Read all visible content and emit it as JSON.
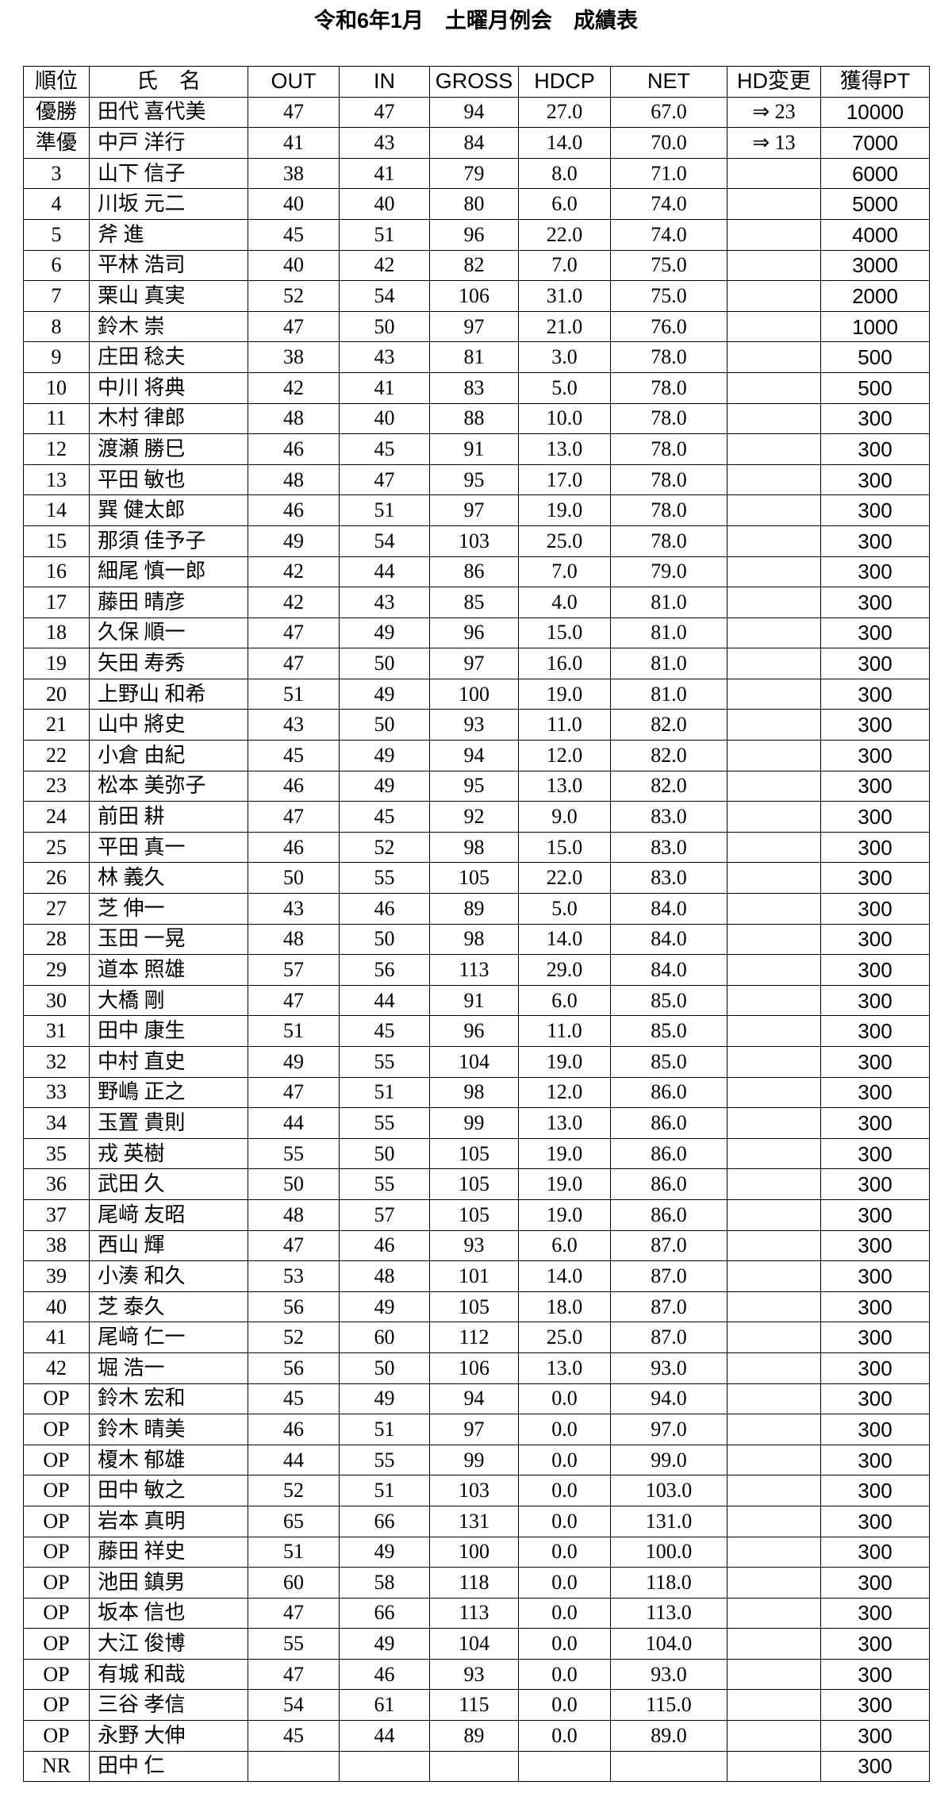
{
  "header": {
    "title": "令和6年1月　土曜月例会　成績表"
  },
  "table": {
    "columns": [
      "順位",
      "氏　名",
      "OUT",
      "IN",
      "GROSS",
      "HDCP",
      "NET",
      "HD変更",
      "獲得PT"
    ],
    "rows": [
      [
        "優勝",
        "田代 喜代美",
        "47",
        "47",
        "94",
        "27.0",
        "67.0",
        "⇒ 23",
        "10000"
      ],
      [
        "準優",
        "中戸 洋行",
        "41",
        "43",
        "84",
        "14.0",
        "70.0",
        "⇒ 13",
        "7000"
      ],
      [
        "3",
        "山下 信子",
        "38",
        "41",
        "79",
        "8.0",
        "71.0",
        null,
        "6000"
      ],
      [
        "4",
        "川坂 元二",
        "40",
        "40",
        "80",
        "6.0",
        "74.0",
        null,
        "5000"
      ],
      [
        "5",
        "斧 進",
        "45",
        "51",
        "96",
        "22.0",
        "74.0",
        null,
        "4000"
      ],
      [
        "6",
        "平林 浩司",
        "40",
        "42",
        "82",
        "7.0",
        "75.0",
        null,
        "3000"
      ],
      [
        "7",
        "栗山 真実",
        "52",
        "54",
        "106",
        "31.0",
        "75.0",
        null,
        "2000"
      ],
      [
        "8",
        "鈴木 崇",
        "47",
        "50",
        "97",
        "21.0",
        "76.0",
        null,
        "1000"
      ],
      [
        "9",
        "庄田 稔夫",
        "38",
        "43",
        "81",
        "3.0",
        "78.0",
        null,
        "500"
      ],
      [
        "10",
        "中川 将典",
        "42",
        "41",
        "83",
        "5.0",
        "78.0",
        null,
        "500"
      ],
      [
        "11",
        "木村 律郎",
        "48",
        "40",
        "88",
        "10.0",
        "78.0",
        null,
        "300"
      ],
      [
        "12",
        "渡瀬 勝巳",
        "46",
        "45",
        "91",
        "13.0",
        "78.0",
        null,
        "300"
      ],
      [
        "13",
        "平田 敏也",
        "48",
        "47",
        "95",
        "17.0",
        "78.0",
        null,
        "300"
      ],
      [
        "14",
        "巽 健太郎",
        "46",
        "51",
        "97",
        "19.0",
        "78.0",
        null,
        "300"
      ],
      [
        "15",
        "那須 佳予子",
        "49",
        "54",
        "103",
        "25.0",
        "78.0",
        null,
        "300"
      ],
      [
        "16",
        "細尾 慎一郎",
        "42",
        "44",
        "86",
        "7.0",
        "79.0",
        null,
        "300"
      ],
      [
        "17",
        "藤田 晴彦",
        "42",
        "43",
        "85",
        "4.0",
        "81.0",
        null,
        "300"
      ],
      [
        "18",
        "久保 順一",
        "47",
        "49",
        "96",
        "15.0",
        "81.0",
        null,
        "300"
      ],
      [
        "19",
        "矢田 寿秀",
        "47",
        "50",
        "97",
        "16.0",
        "81.0",
        null,
        "300"
      ],
      [
        "20",
        "上野山 和希",
        "51",
        "49",
        "100",
        "19.0",
        "81.0",
        null,
        "300"
      ],
      [
        "21",
        "山中 將史",
        "43",
        "50",
        "93",
        "11.0",
        "82.0",
        null,
        "300"
      ],
      [
        "22",
        "小倉 由紀",
        "45",
        "49",
        "94",
        "12.0",
        "82.0",
        null,
        "300"
      ],
      [
        "23",
        "松本 美弥子",
        "46",
        "49",
        "95",
        "13.0",
        "82.0",
        null,
        "300"
      ],
      [
        "24",
        "前田 耕",
        "47",
        "45",
        "92",
        "9.0",
        "83.0",
        null,
        "300"
      ],
      [
        "25",
        "平田 真一",
        "46",
        "52",
        "98",
        "15.0",
        "83.0",
        null,
        "300"
      ],
      [
        "26",
        "林 義久",
        "50",
        "55",
        "105",
        "22.0",
        "83.0",
        null,
        "300"
      ],
      [
        "27",
        "芝 伸一",
        "43",
        "46",
        "89",
        "5.0",
        "84.0",
        null,
        "300"
      ],
      [
        "28",
        "玉田 一晃",
        "48",
        "50",
        "98",
        "14.0",
        "84.0",
        null,
        "300"
      ],
      [
        "29",
        "道本 照雄",
        "57",
        "56",
        "113",
        "29.0",
        "84.0",
        null,
        "300"
      ],
      [
        "30",
        "大橋 剛",
        "47",
        "44",
        "91",
        "6.0",
        "85.0",
        null,
        "300"
      ],
      [
        "31",
        "田中 康生",
        "51",
        "45",
        "96",
        "11.0",
        "85.0",
        null,
        "300"
      ],
      [
        "32",
        "中村 直史",
        "49",
        "55",
        "104",
        "19.0",
        "85.0",
        null,
        "300"
      ],
      [
        "33",
        "野嶋 正之",
        "47",
        "51",
        "98",
        "12.0",
        "86.0",
        null,
        "300"
      ],
      [
        "34",
        "玉置 貴則",
        "44",
        "55",
        "99",
        "13.0",
        "86.0",
        null,
        "300"
      ],
      [
        "35",
        "戎 英樹",
        "55",
        "50",
        "105",
        "19.0",
        "86.0",
        null,
        "300"
      ],
      [
        "36",
        "武田 久",
        "50",
        "55",
        "105",
        "19.0",
        "86.0",
        null,
        "300"
      ],
      [
        "37",
        "尾﨑 友昭",
        "48",
        "57",
        "105",
        "19.0",
        "86.0",
        null,
        "300"
      ],
      [
        "38",
        "西山 輝",
        "47",
        "46",
        "93",
        "6.0",
        "87.0",
        null,
        "300"
      ],
      [
        "39",
        "小湊 和久",
        "53",
        "48",
        "101",
        "14.0",
        "87.0",
        null,
        "300"
      ],
      [
        "40",
        "芝 泰久",
        "56",
        "49",
        "105",
        "18.0",
        "87.0",
        null,
        "300"
      ],
      [
        "41",
        "尾﨑 仁一",
        "52",
        "60",
        "112",
        "25.0",
        "87.0",
        null,
        "300"
      ],
      [
        "42",
        "堀 浩一",
        "56",
        "50",
        "106",
        "13.0",
        "93.0",
        null,
        "300"
      ],
      [
        "OP",
        "鈴木 宏和",
        "45",
        "49",
        "94",
        "0.0",
        "94.0",
        null,
        "300"
      ],
      [
        "OP",
        "鈴木 晴美",
        "46",
        "51",
        "97",
        "0.0",
        "97.0",
        null,
        "300"
      ],
      [
        "OP",
        "榎木 郁雄",
        "44",
        "55",
        "99",
        "0.0",
        "99.0",
        null,
        "300"
      ],
      [
        "OP",
        "田中 敏之",
        "52",
        "51",
        "103",
        "0.0",
        "103.0",
        null,
        "300"
      ],
      [
        "OP",
        "岩本 真明",
        "65",
        "66",
        "131",
        "0.0",
        "131.0",
        null,
        "300"
      ],
      [
        "OP",
        "藤田 祥史",
        "51",
        "49",
        "100",
        "0.0",
        "100.0",
        null,
        "300"
      ],
      [
        "OP",
        "池田 鎮男",
        "60",
        "58",
        "118",
        "0.0",
        "118.0",
        null,
        "300"
      ],
      [
        "OP",
        "坂本 信也",
        "47",
        "66",
        "113",
        "0.0",
        "113.0",
        null,
        "300"
      ],
      [
        "OP",
        "大江 俊博",
        "55",
        "49",
        "104",
        "0.0",
        "104.0",
        null,
        "300"
      ],
      [
        "OP",
        "有城 和哉",
        "47",
        "46",
        "93",
        "0.0",
        "93.0",
        null,
        "300"
      ],
      [
        "OP",
        "三谷 孝信",
        "54",
        "61",
        "115",
        "0.0",
        "115.0",
        null,
        "300"
      ],
      [
        "OP",
        "永野 大伸",
        "45",
        "44",
        "89",
        "0.0",
        "89.0",
        null,
        "300"
      ],
      [
        "NR",
        "田中 仁",
        null,
        null,
        null,
        null,
        null,
        null,
        "300"
      ]
    ]
  }
}
